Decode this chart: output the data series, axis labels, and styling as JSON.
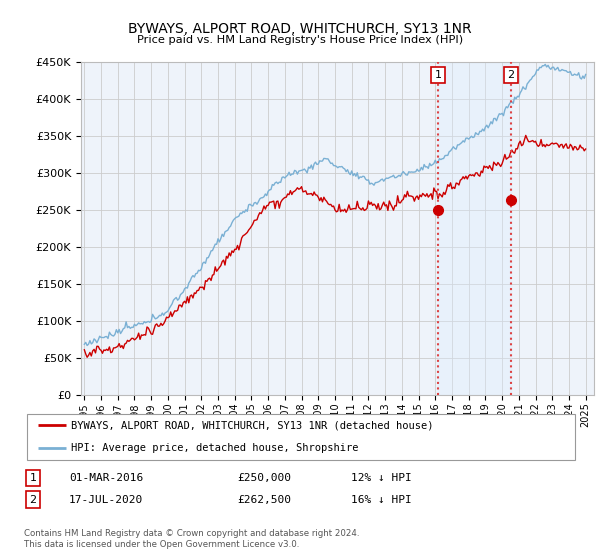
{
  "title": "BYWAYS, ALPORT ROAD, WHITCHURCH, SY13 1NR",
  "subtitle": "Price paid vs. HM Land Registry's House Price Index (HPI)",
  "ylabel_ticks": [
    "£0",
    "£50K",
    "£100K",
    "£150K",
    "£200K",
    "£250K",
    "£300K",
    "£350K",
    "£400K",
    "£450K"
  ],
  "ylim": [
    0,
    450000
  ],
  "xlim_start": 1994.8,
  "xlim_end": 2025.5,
  "event1_x": 2016.17,
  "event1_y": 250000,
  "event2_x": 2020.54,
  "event2_y": 262500,
  "hpi_color": "#7ab0d4",
  "price_color": "#cc0000",
  "event_vline_color": "#dd4444",
  "shade_color": "#ddeeff",
  "background_color": "#eef3fa",
  "legend_label_red": "BYWAYS, ALPORT ROAD, WHITCHURCH, SY13 1NR (detached house)",
  "legend_label_blue": "HPI: Average price, detached house, Shropshire",
  "annot1_num": "1",
  "annot1_date": "01-MAR-2016",
  "annot1_price": "£250,000",
  "annot1_hpi": "12% ↓ HPI",
  "annot2_num": "2",
  "annot2_date": "17-JUL-2020",
  "annot2_price": "£262,500",
  "annot2_hpi": "16% ↓ HPI",
  "footer": "Contains HM Land Registry data © Crown copyright and database right 2024.\nThis data is licensed under the Open Government Licence v3.0."
}
